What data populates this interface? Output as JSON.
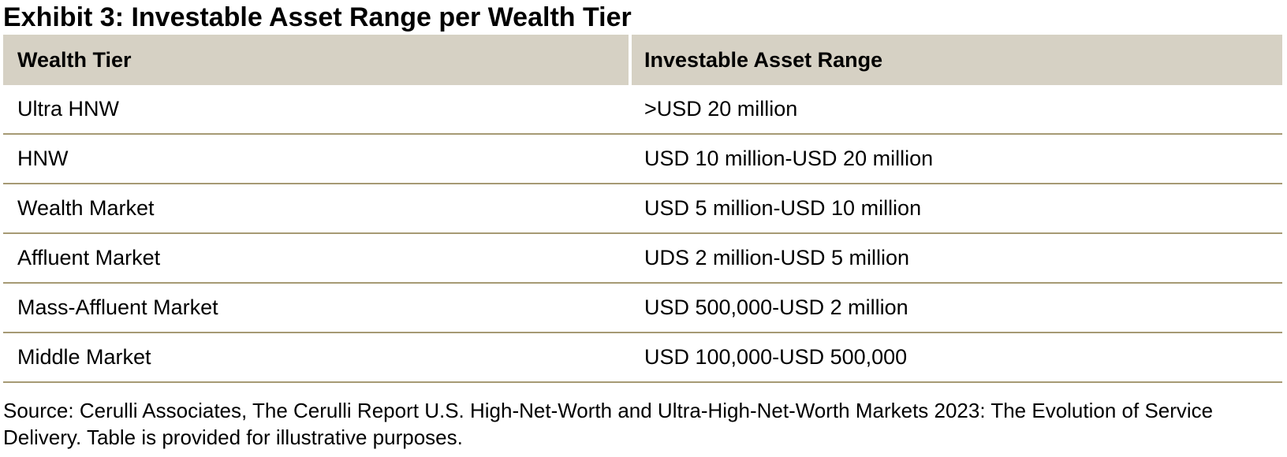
{
  "title": "Exhibit 3: Investable Asset Range per Wealth Tier",
  "table": {
    "columns": [
      "Wealth Tier",
      "Investable Asset Range"
    ],
    "rows": [
      {
        "tier": "Ultra HNW",
        "range": ">USD 20 million"
      },
      {
        "tier": "HNW",
        "range": "USD 10 million-USD 20 million"
      },
      {
        "tier": "Wealth Market",
        "range": "USD 5 million-USD 10 million"
      },
      {
        "tier": "Affluent Market",
        "range": "UDS 2 million-USD 5 million"
      },
      {
        "tier": "Mass-Affluent Market",
        "range": "USD 500,000-USD 2 million"
      },
      {
        "tier": "Middle Market",
        "range": "USD 100,000-USD 500,000"
      }
    ]
  },
  "source_note": "Source: Cerulli Associates, The Cerulli Report U.S. High-Net-Worth and Ultra-High-Net-Worth Markets 2023: The Evolution of Service Delivery. Table is provided for illustrative purposes.",
  "colors": {
    "header_background": "#d6d1c4",
    "row_divider": "#a69a74",
    "text": "#000000",
    "column_gap": "#ffffff"
  },
  "chart_data": {
    "type": "table",
    "title": "Exhibit 3: Investable Asset Range per Wealth Tier",
    "columns": [
      "Wealth Tier",
      "Investable Asset Range"
    ],
    "rows": [
      [
        "Ultra HNW",
        ">USD 20 million"
      ],
      [
        "HNW",
        "USD 10 million-USD 20 million"
      ],
      [
        "Wealth Market",
        "USD 5 million-USD 10 million"
      ],
      [
        "Affluent Market",
        "UDS 2 million-USD 5 million"
      ],
      [
        "Mass-Affluent Market",
        "USD 500,000-USD 2 million"
      ],
      [
        "Middle Market",
        "USD 100,000-USD 500,000"
      ]
    ],
    "source": "Source: Cerulli Associates, The Cerulli Report U.S. High-Net-Worth and Ultra-High-Net-Worth Markets 2023: The Evolution of Service Delivery. Table is provided for illustrative purposes."
  }
}
